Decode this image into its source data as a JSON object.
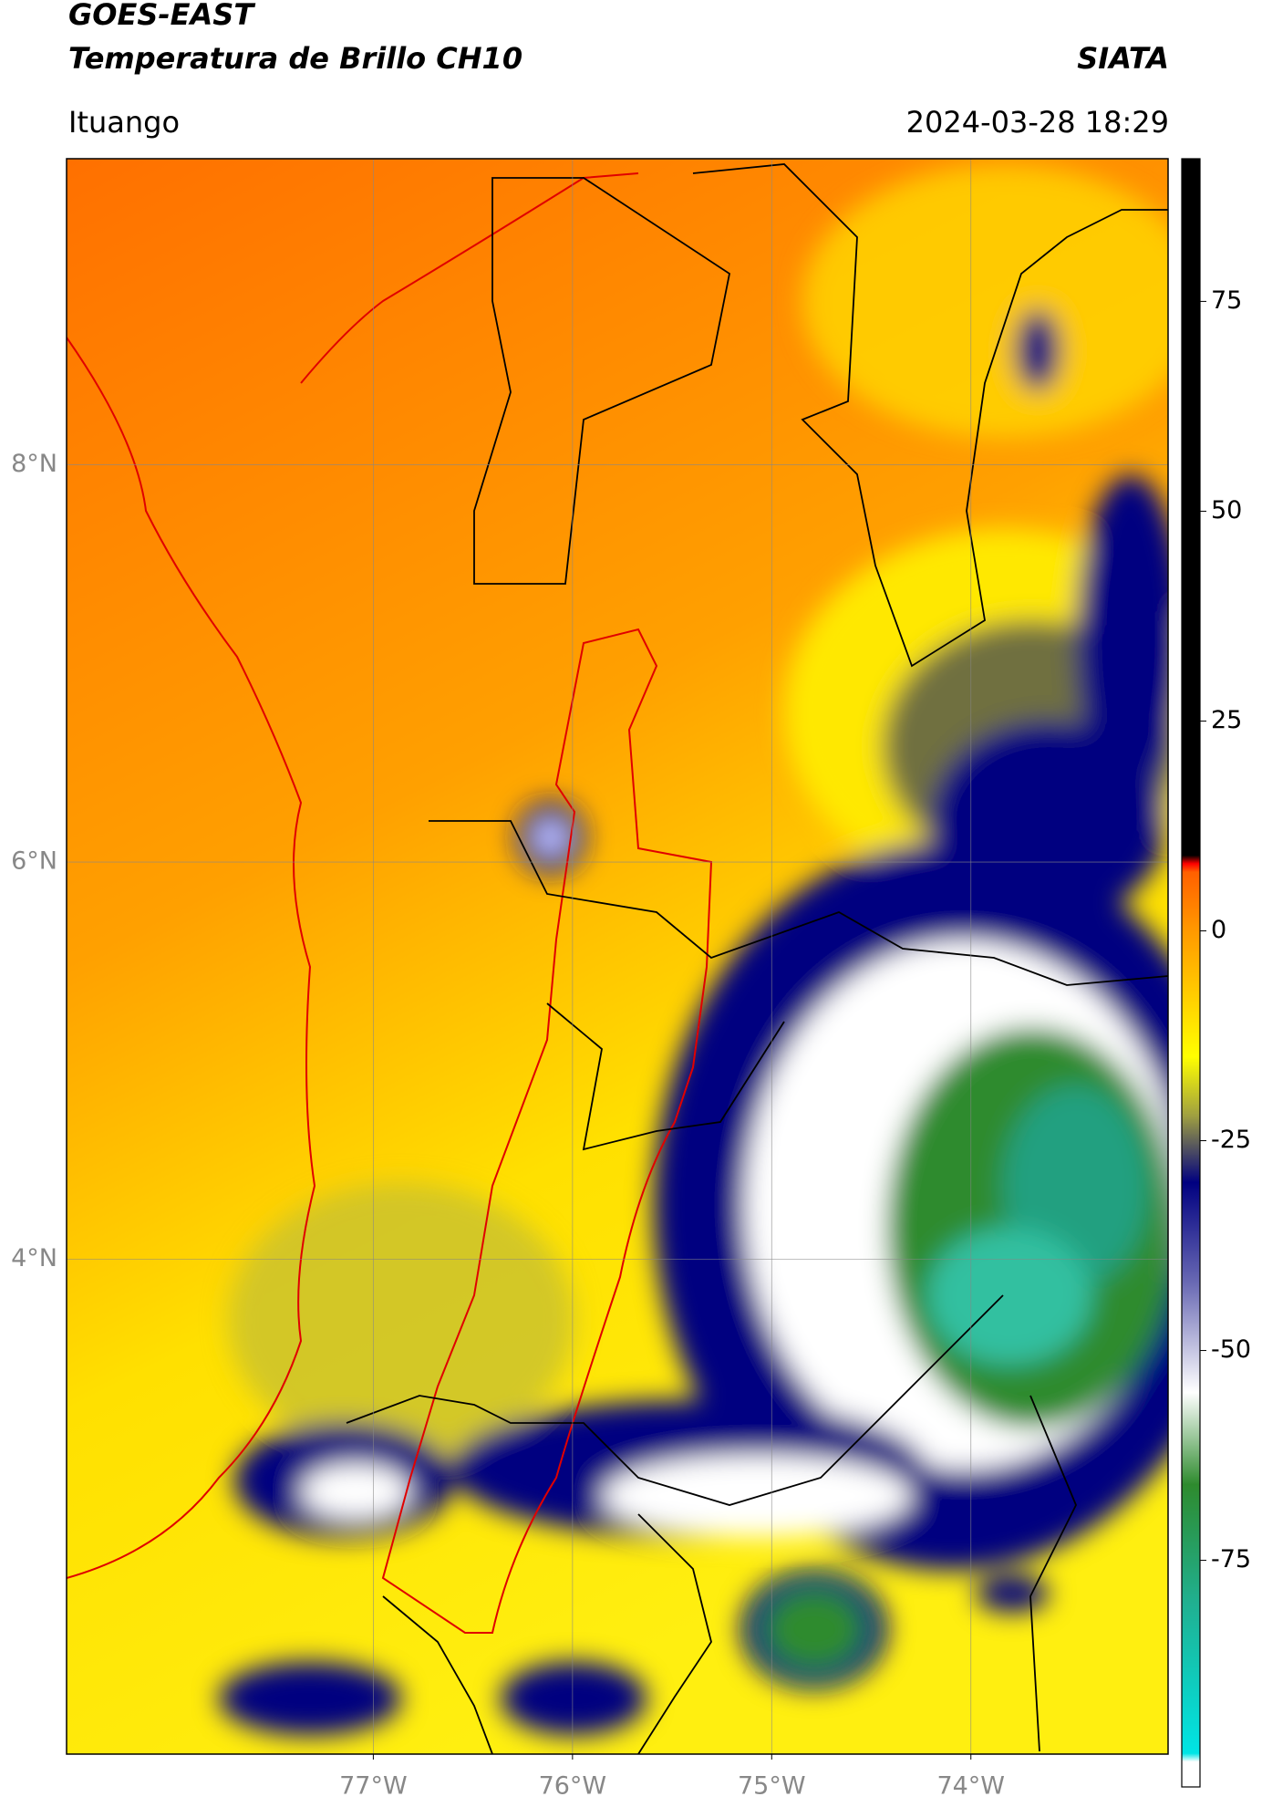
{
  "header": {
    "title": "GOES-EAST",
    "subtitle": "Temperatura de Brillo CH10",
    "brand": "SIATA",
    "location": "Ituango",
    "timestamp": "2024-03-28 18:29"
  },
  "map": {
    "xlim": [
      -78.54,
      -73.01
    ],
    "ylim": [
      1.51,
      9.54
    ],
    "xticks": [
      {
        "value": -77,
        "label": "77°W"
      },
      {
        "value": -76,
        "label": "76°W"
      },
      {
        "value": -75,
        "label": "75°W"
      },
      {
        "value": -74,
        "label": "74°W"
      }
    ],
    "yticks": [
      {
        "value": 8,
        "label": "8°N"
      },
      {
        "value": 6,
        "label": "6°N"
      },
      {
        "value": 4,
        "label": "4°N"
      }
    ],
    "grid": true
  },
  "colorbar": {
    "lim": [
      -102,
      92
    ],
    "ticks": [
      75,
      50,
      25,
      0,
      -25,
      -50,
      -75
    ],
    "stops": [
      {
        "value": -102,
        "color": "#ffffff"
      },
      {
        "value": -99,
        "color": "#ffffff"
      },
      {
        "value": -98,
        "color": "#00e5e5"
      },
      {
        "value": -80,
        "color": "#20b090"
      },
      {
        "value": -66,
        "color": "#2e8b2e"
      },
      {
        "value": -55,
        "color": "#ffffff"
      },
      {
        "value": -42,
        "color": "#6a6ab4"
      },
      {
        "value": -30,
        "color": "#000080"
      },
      {
        "value": -22,
        "color": "#a0a040"
      },
      {
        "value": -15,
        "color": "#ffff00"
      },
      {
        "value": 0,
        "color": "#ff9900"
      },
      {
        "value": 7,
        "color": "#ff6000"
      },
      {
        "value": 8,
        "color": "#ff0000"
      },
      {
        "value": 9,
        "color": "#000000"
      },
      {
        "value": 92,
        "color": "#000000"
      }
    ]
  }
}
